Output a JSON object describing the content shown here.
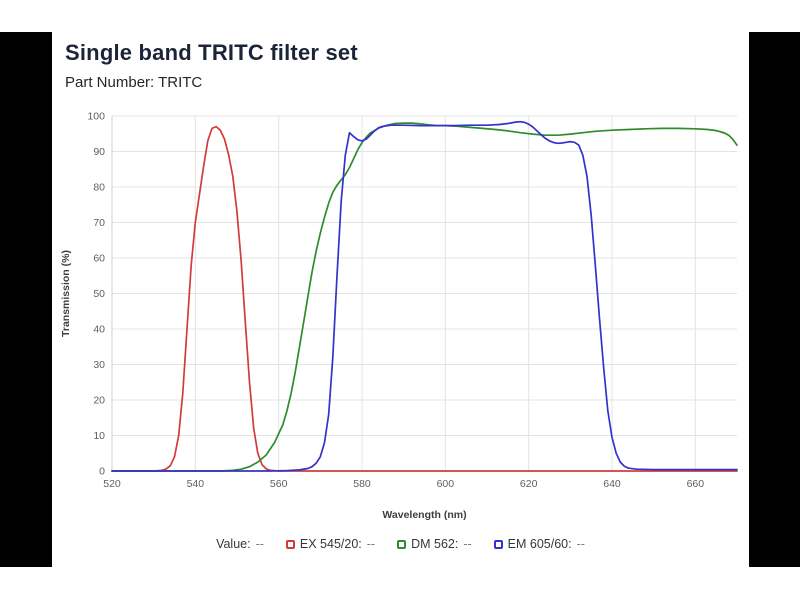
{
  "header": {
    "title": "Single band TRITC filter set",
    "part_number": "Part Number: TRITC"
  },
  "legend": {
    "value_label": "Value:",
    "value_placeholder": "--",
    "items": [
      {
        "label": "EX 545/20:",
        "value": "--"
      },
      {
        "label": "DM 562:",
        "value": "--"
      },
      {
        "label": "EM 605/60:",
        "value": "--"
      }
    ]
  },
  "chart_data": {
    "type": "line",
    "title": "Single band TRITC filter set",
    "subtitle": "Part Number: TRITC",
    "xlabel": "Wavelength (nm)",
    "ylabel": "Transmission (%)",
    "xlim": [
      520,
      670
    ],
    "ylim": [
      0,
      100
    ],
    "x_ticks": [
      520,
      540,
      560,
      580,
      600,
      620,
      640,
      660
    ],
    "y_ticks": [
      0,
      10,
      20,
      30,
      40,
      50,
      60,
      70,
      80,
      90,
      100
    ],
    "grid": true,
    "legend_position": "bottom",
    "styles": {
      "grid_color": "#e4e4e4",
      "axis_line_color": "#cfcfcf",
      "tick_label_color": "#5f5f5f",
      "axis_title_color": "#3d3d3d",
      "frame_color": "#000000",
      "title_color": "#1c2438"
    },
    "series": [
      {
        "name": "EX 545/20",
        "color": "#d03c3c",
        "points": [
          [
            520,
            0
          ],
          [
            530,
            0
          ],
          [
            532,
            0.2
          ],
          [
            533,
            0.6
          ],
          [
            534,
            1.5
          ],
          [
            535,
            4
          ],
          [
            536,
            10
          ],
          [
            537,
            22
          ],
          [
            538,
            40
          ],
          [
            539,
            58
          ],
          [
            540,
            70
          ],
          [
            541,
            78
          ],
          [
            542,
            86
          ],
          [
            543,
            93
          ],
          [
            544,
            96.5
          ],
          [
            545,
            97
          ],
          [
            546,
            96
          ],
          [
            547,
            93.5
          ],
          [
            548,
            89
          ],
          [
            549,
            83
          ],
          [
            550,
            73
          ],
          [
            551,
            59
          ],
          [
            552,
            42
          ],
          [
            553,
            25
          ],
          [
            554,
            12
          ],
          [
            555,
            5
          ],
          [
            556,
            1.8
          ],
          [
            557,
            0.6
          ],
          [
            558,
            0.2
          ],
          [
            560,
            0
          ],
          [
            580,
            0
          ],
          [
            600,
            0
          ],
          [
            620,
            0
          ],
          [
            640,
            0
          ],
          [
            660,
            0
          ],
          [
            670,
            0
          ]
        ]
      },
      {
        "name": "DM 562",
        "color": "#2e8b2e",
        "points": [
          [
            520,
            0
          ],
          [
            546,
            0
          ],
          [
            549,
            0.2
          ],
          [
            551,
            0.5
          ],
          [
            553,
            1.2
          ],
          [
            555,
            2.5
          ],
          [
            557,
            4.5
          ],
          [
            559,
            8
          ],
          [
            561,
            13
          ],
          [
            562,
            17
          ],
          [
            563,
            22
          ],
          [
            564,
            28
          ],
          [
            565,
            35
          ],
          [
            566,
            42
          ],
          [
            567,
            49
          ],
          [
            568,
            56
          ],
          [
            569,
            62
          ],
          [
            570,
            67
          ],
          [
            571,
            71.5
          ],
          [
            572,
            75.5
          ],
          [
            573,
            78.5
          ],
          [
            574,
            80.5
          ],
          [
            575,
            82
          ],
          [
            576,
            83.5
          ],
          [
            577,
            85.5
          ],
          [
            578,
            88
          ],
          [
            579,
            90.5
          ],
          [
            580,
            92.5
          ],
          [
            581,
            94
          ],
          [
            582,
            95.2
          ],
          [
            584,
            96.6
          ],
          [
            586,
            97.4
          ],
          [
            588,
            97.9
          ],
          [
            590,
            98
          ],
          [
            592,
            98
          ],
          [
            594,
            97.8
          ],
          [
            596,
            97.5
          ],
          [
            598,
            97.3
          ],
          [
            600,
            97.3
          ],
          [
            603,
            97.1
          ],
          [
            606,
            96.8
          ],
          [
            609,
            96.5
          ],
          [
            612,
            96.2
          ],
          [
            615,
            95.8
          ],
          [
            618,
            95.3
          ],
          [
            621,
            94.9
          ],
          [
            624,
            94.6
          ],
          [
            627,
            94.6
          ],
          [
            630,
            94.9
          ],
          [
            633,
            95.3
          ],
          [
            636,
            95.7
          ],
          [
            640,
            96
          ],
          [
            644,
            96.2
          ],
          [
            648,
            96.4
          ],
          [
            652,
            96.5
          ],
          [
            656,
            96.5
          ],
          [
            660,
            96.4
          ],
          [
            663,
            96.2
          ],
          [
            665,
            95.9
          ],
          [
            667,
            95.2
          ],
          [
            668,
            94.6
          ],
          [
            669,
            93.4
          ],
          [
            670,
            91.8
          ]
        ]
      },
      {
        "name": "EM 605/60",
        "color": "#3432cc",
        "points": [
          [
            520,
            0
          ],
          [
            558,
            0
          ],
          [
            562,
            0.1
          ],
          [
            565,
            0.3
          ],
          [
            567,
            0.7
          ],
          [
            568,
            1.2
          ],
          [
            569,
            2.2
          ],
          [
            570,
            4
          ],
          [
            571,
            8
          ],
          [
            572,
            16
          ],
          [
            573,
            32
          ],
          [
            574,
            55
          ],
          [
            575,
            76
          ],
          [
            576,
            89
          ],
          [
            577,
            95.3
          ],
          [
            578,
            94.2
          ],
          [
            579,
            93.3
          ],
          [
            580,
            93
          ],
          [
            581,
            93.5
          ],
          [
            582,
            94.6
          ],
          [
            583,
            95.8
          ],
          [
            584,
            96.7
          ],
          [
            585,
            97.1
          ],
          [
            587,
            97.4
          ],
          [
            590,
            97.4
          ],
          [
            594,
            97.3
          ],
          [
            598,
            97.3
          ],
          [
            602,
            97.3
          ],
          [
            606,
            97.4
          ],
          [
            610,
            97.4
          ],
          [
            613,
            97.6
          ],
          [
            615,
            97.9
          ],
          [
            617,
            98.3
          ],
          [
            618,
            98.4
          ],
          [
            619,
            98.2
          ],
          [
            620,
            97.7
          ],
          [
            621,
            96.9
          ],
          [
            622,
            95.8
          ],
          [
            623,
            94.7
          ],
          [
            624,
            93.7
          ],
          [
            625,
            93
          ],
          [
            626,
            92.5
          ],
          [
            627,
            92.3
          ],
          [
            628,
            92.4
          ],
          [
            629,
            92.6
          ],
          [
            630,
            92.8
          ],
          [
            631,
            92.6
          ],
          [
            632,
            91.8
          ],
          [
            633,
            89
          ],
          [
            634,
            83
          ],
          [
            635,
            72
          ],
          [
            636,
            58
          ],
          [
            637,
            43
          ],
          [
            638,
            29
          ],
          [
            639,
            17
          ],
          [
            640,
            9.5
          ],
          [
            641,
            5
          ],
          [
            642,
            2.5
          ],
          [
            643,
            1.3
          ],
          [
            644,
            0.8
          ],
          [
            646,
            0.5
          ],
          [
            650,
            0.4
          ],
          [
            655,
            0.4
          ],
          [
            660,
            0.4
          ],
          [
            665,
            0.4
          ],
          [
            670,
            0.4
          ]
        ]
      }
    ]
  }
}
